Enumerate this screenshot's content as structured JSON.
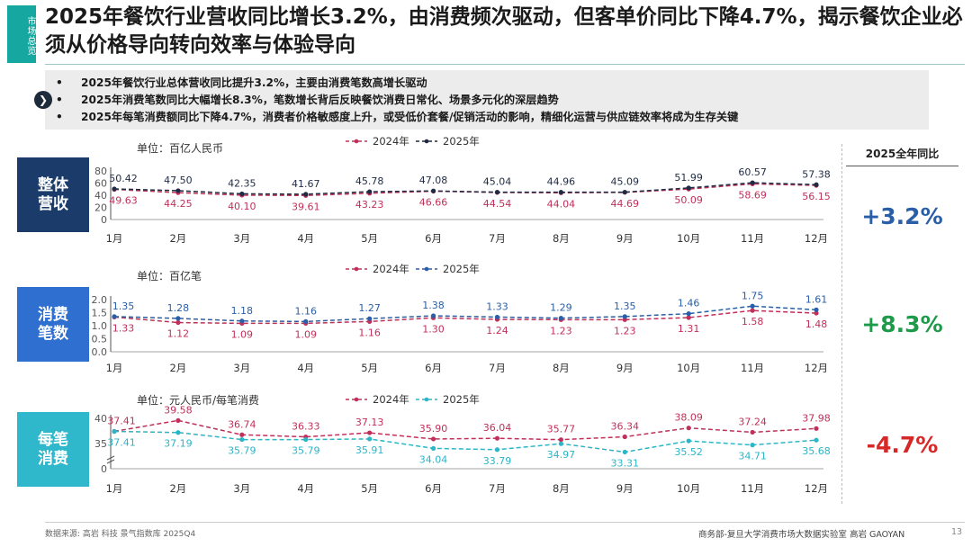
{
  "side_tab": "市场总览",
  "title": "2025年餐饮行业营收同比增长3.2%，由消费频次驱动，但客单价同比下降4.7%，揭示餐饮企业必须从价格导向转向效率与体验导向",
  "bullets": [
    "2025年餐饮行业总体营收同比提升3.2%，主要由消费笔数高增长驱动",
    "2025年消费笔数同比大幅增长8.3%，笔数增长背后反映餐饮消费日常化、场景多元化的深层趋势",
    "2025年每笔消费额同比下降4.7%，消费者价格敏感度上升，或受低价套餐/促销活动的影响，精细化运营与供应链效率将成为生存关键"
  ],
  "arrow_glyph": "❯",
  "yoy_header": "2025全年同比",
  "rows": [
    {
      "label_line1": "整体",
      "label_line2": "营收",
      "yoy": "+3.2%",
      "yoy_color": "#2a5fa8"
    },
    {
      "label_line1": "消费",
      "label_line2": "笔数",
      "yoy": "+8.3%",
      "yoy_color": "#1e9a4a"
    },
    {
      "label_line1": "每笔",
      "label_line2": "消费",
      "yoy": "-4.7%",
      "yoy_color": "#d62828"
    }
  ],
  "footer_source": "数据来源: 高岩 科技 景气指数库 2025Q4",
  "footer_credit": "商务部-复旦大学消费市场大数据实验室    高岩 GAOYAN",
  "page_number": "13",
  "chart_data": [
    {
      "type": "line",
      "unit": "单位：百亿人民币",
      "categories": [
        "1月",
        "2月",
        "3月",
        "4月",
        "5月",
        "6月",
        "7月",
        "8月",
        "9月",
        "10月",
        "11月",
        "12月"
      ],
      "yticks": [
        "0",
        "20",
        "40",
        "60",
        "80"
      ],
      "ylim": [
        0,
        80
      ],
      "series": [
        {
          "name": "2024年",
          "color": "#c0305a",
          "values": [
            49.63,
            44.25,
            40.1,
            39.61,
            43.23,
            46.66,
            44.54,
            44.04,
            44.69,
            50.09,
            58.69,
            56.15
          ],
          "labels": [
            "49.63",
            "44.25",
            "40.10",
            "39.61",
            "43.23",
            "46.66",
            "44.54",
            "44.04",
            "44.69",
            "50.09",
            "58.69",
            "56.15"
          ]
        },
        {
          "name": "2025年",
          "color": "#1f2b44",
          "values": [
            50.42,
            47.5,
            42.35,
            41.67,
            45.78,
            47.08,
            45.04,
            44.96,
            45.09,
            51.99,
            60.57,
            57.38
          ],
          "labels": [
            "50.42",
            "47.50",
            "42.35",
            "41.67",
            "45.78",
            "47.08",
            "45.04",
            "44.96",
            "45.09",
            "51.99",
            "60.57",
            "57.38"
          ]
        }
      ]
    },
    {
      "type": "line",
      "unit": "单位：百亿笔",
      "categories": [
        "1月",
        "2月",
        "3月",
        "4月",
        "5月",
        "6月",
        "7月",
        "8月",
        "9月",
        "10月",
        "11月",
        "12月"
      ],
      "yticks": [
        "0.0",
        "0.5",
        "1.0",
        "1.5",
        "2.0"
      ],
      "ylim": [
        0,
        2.0
      ],
      "series": [
        {
          "name": "2024年",
          "color": "#c0305a",
          "values": [
            1.33,
            1.12,
            1.09,
            1.09,
            1.16,
            1.3,
            1.24,
            1.23,
            1.23,
            1.31,
            1.58,
            1.48
          ],
          "labels": [
            "1.33",
            "1.12",
            "1.09",
            "1.09",
            "1.16",
            "1.30",
            "1.24",
            "1.23",
            "1.23",
            "1.31",
            "1.58",
            "1.48"
          ]
        },
        {
          "name": "2025年",
          "color": "#2a5fa8",
          "values": [
            1.35,
            1.28,
            1.18,
            1.16,
            1.27,
            1.38,
            1.33,
            1.29,
            1.35,
            1.46,
            1.75,
            1.61
          ],
          "labels": [
            "1.35",
            "1.28",
            "1.18",
            "1.16",
            "1.27",
            "1.38",
            "1.33",
            "1.29",
            "1.35",
            "1.46",
            "1.75",
            "1.61"
          ]
        }
      ]
    },
    {
      "type": "line",
      "unit": "单位：元人民币/每笔消费",
      "categories": [
        "1月",
        "2月",
        "3月",
        "4月",
        "5月",
        "6月",
        "7月",
        "8月",
        "9月",
        "10月",
        "11月",
        "12月"
      ],
      "yticks": [
        "0",
        "35",
        "40"
      ],
      "ylim": [
        30,
        40
      ],
      "series": [
        {
          "name": "2024年",
          "color": "#c0305a",
          "values": [
            37.41,
            39.58,
            36.74,
            36.33,
            37.13,
            35.9,
            36.04,
            35.77,
            36.34,
            38.09,
            37.24,
            37.98
          ],
          "labels": [
            "37.41",
            "39.58",
            "36.74",
            "36.33",
            "37.13",
            "35.90",
            "36.04",
            "35.77",
            "36.34",
            "38.09",
            "37.24",
            "37.98"
          ]
        },
        {
          "name": "2025年",
          "color": "#2bb5c7",
          "values": [
            37.41,
            37.19,
            35.79,
            35.79,
            35.91,
            34.04,
            33.79,
            34.97,
            33.31,
            35.52,
            34.71,
            35.68
          ],
          "labels": [
            "37.41",
            "37.19",
            "35.79",
            "35.79",
            "35.91",
            "34.04",
            "33.79",
            "34.97",
            "33.31",
            "35.52",
            "34.71",
            "35.68"
          ]
        }
      ]
    }
  ]
}
